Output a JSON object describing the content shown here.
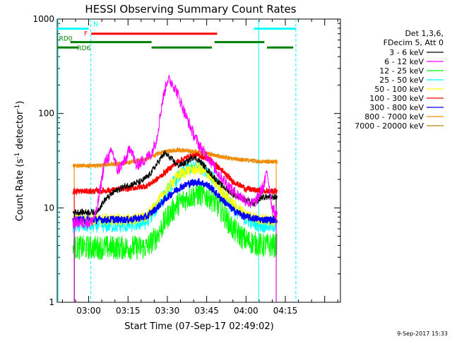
{
  "chart_data": {
    "type": "line",
    "title": "HESSI Observing Summary Count Rates",
    "xlabel": "Start Time (07-Sep-17 02:49:02)",
    "ylabel_main": "Count Rate (s",
    "ylabel_sup1": "-1",
    "ylabel_mid": " detector",
    "ylabel_sup2": "-1",
    "ylabel_end": ")",
    "yscale": "log",
    "ylim": [
      1,
      1000
    ],
    "xlim_minutes": [
      -12,
      96
    ],
    "x_ticks": [
      {
        "m": 0,
        "label": "03:00"
      },
      {
        "m": 15,
        "label": "03:15"
      },
      {
        "m": 30,
        "label": "03:30"
      },
      {
        "m": 45,
        "label": "03:45"
      },
      {
        "m": 60,
        "label": "04:00"
      },
      {
        "m": 75,
        "label": "04:15"
      }
    ],
    "y_ticks": [
      {
        "v": 1,
        "label": "1"
      },
      {
        "v": 10,
        "label": "10"
      },
      {
        "v": 100,
        "label": "100"
      },
      {
        "v": 1000,
        "label": "1000"
      }
    ],
    "legend_header": [
      "Det 1,3,6,",
      "FDecim 5, Att 0"
    ],
    "series": [
      {
        "name": "3 - 6 keV",
        "color": "#000000",
        "x": [
          -6,
          3,
          6,
          10,
          14,
          20,
          23,
          27,
          29,
          31,
          34,
          37,
          40,
          43,
          46,
          50,
          55,
          60,
          63,
          66,
          69,
          72
        ],
        "y": [
          9,
          9,
          12,
          15,
          17,
          19,
          22,
          32,
          38,
          34,
          28,
          30,
          35,
          30,
          24,
          18,
          14,
          12,
          11,
          13,
          13,
          13
        ]
      },
      {
        "name": "6 - 12 keV",
        "color": "#ff00ff",
        "x": [
          -6,
          1,
          3,
          6,
          9,
          11,
          14,
          16,
          18,
          21,
          24,
          26,
          28,
          30,
          32,
          34,
          37,
          40,
          43,
          46,
          49,
          52,
          55,
          60,
          62,
          64,
          67,
          68,
          70,
          72
        ],
        "y": [
          7,
          7,
          9,
          30,
          40,
          25,
          32,
          45,
          28,
          32,
          38,
          55,
          130,
          230,
          210,
          160,
          95,
          60,
          42,
          33,
          24,
          19,
          15,
          12,
          11,
          12,
          18,
          25,
          10,
          8
        ]
      },
      {
        "name": "12 - 25 keV",
        "color": "#00ff00",
        "x": [
          -6,
          3,
          15,
          22,
          26,
          30,
          34,
          38,
          42,
          46,
          50,
          55,
          60,
          66,
          72
        ],
        "y": [
          3.8,
          3.8,
          3.8,
          3.8,
          5,
          8,
          11,
          13,
          14,
          13,
          10,
          6,
          4.5,
          4,
          4
        ]
      },
      {
        "name": "25 - 50 keV",
        "color": "#00ffff",
        "x": [
          -6,
          3,
          15,
          22,
          26,
          30,
          34,
          38,
          42,
          46,
          50,
          55,
          60,
          66,
          72
        ],
        "y": [
          6.5,
          6.5,
          6.5,
          7,
          10,
          15,
          21,
          26,
          28,
          24,
          16,
          10,
          7.5,
          6.5,
          6.5
        ]
      },
      {
        "name": "50 - 100 keV",
        "color": "#ffff00",
        "x": [
          -6,
          3,
          15,
          22,
          26,
          30,
          34,
          38,
          42,
          46,
          50,
          55,
          60,
          66,
          72
        ],
        "y": [
          7.5,
          7.5,
          7.5,
          8,
          11,
          16,
          22,
          25,
          26,
          22,
          16,
          11,
          8.5,
          7.5,
          7.5
        ]
      },
      {
        "name": "100 - 300 keV",
        "color": "#ff0000",
        "x": [
          -6,
          3,
          15,
          22,
          26,
          30,
          34,
          38,
          42,
          46,
          50,
          55,
          60,
          66,
          72
        ],
        "y": [
          15,
          15,
          16,
          17,
          20,
          25,
          31,
          35,
          36,
          33,
          26,
          19,
          16,
          15,
          15
        ]
      },
      {
        "name": "300 - 800 keV",
        "color": "#0000ff",
        "x": [
          -6,
          3,
          15,
          22,
          26,
          30,
          34,
          38,
          42,
          46,
          50,
          55,
          60,
          66,
          72
        ],
        "y": [
          7.5,
          7.5,
          7.5,
          8,
          10,
          13,
          16,
          18,
          19,
          17,
          13,
          9.5,
          8,
          7.5,
          7.5
        ]
      },
      {
        "name": "800 - 7000 keV",
        "color": "#ff8c00",
        "x": [
          -6,
          3,
          15,
          22,
          26,
          30,
          34,
          38,
          42,
          46,
          50,
          55,
          60,
          66,
          72
        ],
        "y": [
          28,
          28,
          30,
          33,
          37,
          40,
          41,
          40,
          39,
          37,
          35,
          33,
          32,
          31,
          31
        ]
      },
      {
        "name": "7000 - 20000 keV",
        "color": "#b8860b",
        "x": [
          -6,
          3,
          15,
          22,
          26,
          30,
          34,
          38,
          42,
          46,
          50,
          55,
          60,
          66,
          72
        ],
        "y": [
          28,
          28,
          30,
          33,
          37,
          40,
          41,
          40,
          39,
          37,
          35,
          33,
          32,
          31,
          31
        ]
      }
    ],
    "flag_bars": [
      {
        "label": "",
        "color": "#00ffff",
        "y": 790,
        "segments": [
          [
            -12,
            0
          ],
          [
            63,
            79
          ]
        ]
      },
      {
        "label": "N",
        "color": "#00ffff",
        "y": 890,
        "segments": []
      },
      {
        "label": "F",
        "color": "#ff0000",
        "y": 700,
        "segments": [
          [
            1,
            49
          ]
        ]
      },
      {
        "label": "RD0",
        "color": "#008000",
        "y": 570,
        "segments": [
          [
            -7,
            24
          ],
          [
            48,
            67
          ]
        ]
      },
      {
        "label": "RD6",
        "color": "#008000",
        "y": 500,
        "segments": [
          [
            -12,
            -4
          ],
          [
            24,
            47
          ],
          [
            68,
            78
          ]
        ]
      }
    ],
    "vertical_lines": [
      {
        "m": -11.7,
        "color": "#00ffff",
        "style": "solid"
      },
      {
        "m": 0.8,
        "color": "#00ffff",
        "style": "dashed"
      },
      {
        "m": 64.8,
        "color": "#00ffff",
        "style": "solid"
      },
      {
        "m": 79,
        "color": "#00ffff",
        "style": "dashed"
      }
    ],
    "timestamp": "9-Sep-2017 15:33"
  }
}
